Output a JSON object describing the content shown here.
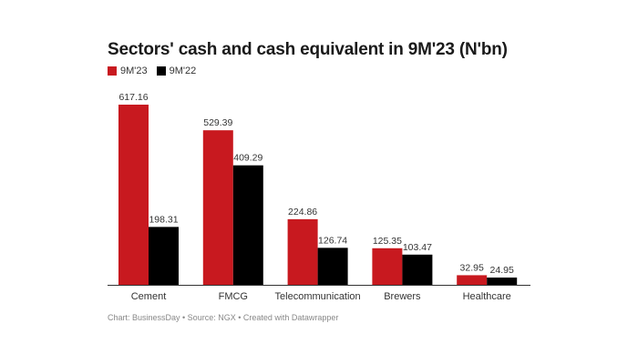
{
  "chart_data": {
    "type": "bar",
    "title": "Sectors' cash and cash equivalent in 9M'23 (N'bn)",
    "categories": [
      "Cement",
      "FMCG",
      "Telecommunication",
      "Brewers",
      "Healthcare"
    ],
    "series": [
      {
        "name": "9M'23",
        "color": "#c8191f",
        "values": [
          617.16,
          529.39,
          224.86,
          125.35,
          32.95
        ],
        "labels": [
          "617.16",
          "529.39",
          "224.86",
          "125.35",
          "32.95"
        ]
      },
      {
        "name": "9M'22",
        "color": "#000000",
        "values": [
          198.31,
          409.29,
          126.74,
          103.47,
          24.95
        ],
        "labels": [
          "198.31",
          "409.29",
          "126.74",
          "103.47",
          "24.95"
        ]
      }
    ],
    "ylim": [
      0,
      617.16
    ],
    "xlabel": "",
    "ylabel": "",
    "source": "Chart: BusinessDay • Source: NGX • Created with Datawrapper"
  }
}
